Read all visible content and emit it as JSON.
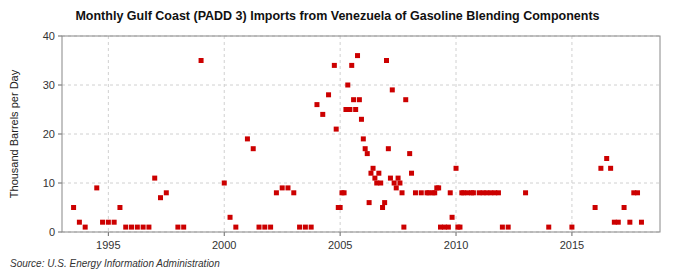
{
  "chart_data": {
    "type": "scatter",
    "title": "Monthly Gulf Coast (PADD 3) Imports from Venezuela of Gasoline Blending Components",
    "ylabel": "Thousand Barrels per Day",
    "source": "Source: U.S. Energy Information Administration",
    "color": "#cc0000",
    "marker": "square",
    "grid": true,
    "xlim": [
      1993.0,
      2018.8
    ],
    "xticks": [
      1995,
      2000,
      2005,
      2010,
      2015
    ],
    "ylim": [
      0,
      40
    ],
    "yticks": [
      0,
      10,
      20,
      30,
      40
    ],
    "x": [
      1993.5,
      1993.75,
      1994.0,
      1994.5,
      1994.75,
      1995.0,
      1995.25,
      1995.5,
      1995.75,
      1996.0,
      1996.25,
      1996.5,
      1996.75,
      1997.0,
      1997.25,
      1997.5,
      1998.0,
      1998.25,
      1999.0,
      2000.0,
      2000.25,
      2000.5,
      2001.0,
      2001.25,
      2001.5,
      2001.75,
      2002.0,
      2002.25,
      2002.5,
      2002.75,
      2003.0,
      2003.25,
      2003.5,
      2003.75,
      2004.0,
      2004.25,
      2004.5,
      2004.75,
      2004.83,
      2004.92,
      2005.0,
      2005.08,
      2005.17,
      2005.25,
      2005.33,
      2005.42,
      2005.5,
      2005.58,
      2005.67,
      2005.75,
      2005.83,
      2005.92,
      2006.0,
      2006.08,
      2006.17,
      2006.25,
      2006.33,
      2006.42,
      2006.5,
      2006.58,
      2006.67,
      2006.75,
      2006.83,
      2006.92,
      2007.0,
      2007.08,
      2007.17,
      2007.25,
      2007.33,
      2007.42,
      2007.5,
      2007.58,
      2007.67,
      2007.75,
      2007.83,
      2008.0,
      2008.08,
      2008.25,
      2008.5,
      2008.75,
      2008.83,
      2009.0,
      2009.08,
      2009.17,
      2009.25,
      2009.33,
      2009.5,
      2009.67,
      2009.75,
      2009.83,
      2010.0,
      2010.08,
      2010.17,
      2010.25,
      2010.33,
      2010.5,
      2010.67,
      2010.75,
      2011.0,
      2011.17,
      2011.33,
      2011.5,
      2011.67,
      2011.83,
      2012.0,
      2012.25,
      2013.0,
      2014.0,
      2015.0,
      2016.0,
      2016.25,
      2016.5,
      2016.67,
      2016.83,
      2017.0,
      2017.25,
      2017.5,
      2017.67,
      2017.83,
      2018.0
    ],
    "values": [
      5,
      2,
      1,
      9,
      2,
      2,
      2,
      5,
      1,
      1,
      1,
      1,
      1,
      11,
      7,
      8,
      1,
      1,
      35,
      10,
      3,
      1,
      19,
      17,
      1,
      1,
      1,
      8,
      9,
      9,
      8,
      1,
      1,
      1,
      26,
      24,
      28,
      34,
      21,
      5,
      5,
      8,
      8,
      25,
      30,
      25,
      34,
      27,
      25,
      36,
      27,
      23,
      19,
      17,
      16,
      6,
      12,
      13,
      11,
      10,
      12,
      10,
      5,
      6,
      35,
      17,
      11,
      29,
      10,
      9,
      11,
      10,
      8,
      1,
      27,
      16,
      12,
      8,
      8,
      8,
      8,
      8,
      8,
      9,
      9,
      1,
      1,
      1,
      8,
      3,
      13,
      1,
      1,
      8,
      8,
      8,
      8,
      8,
      8,
      8,
      8,
      8,
      8,
      8,
      1,
      1,
      8,
      1,
      1,
      5,
      13,
      15,
      13,
      2,
      2,
      5,
      2,
      8,
      8,
      2
    ]
  }
}
